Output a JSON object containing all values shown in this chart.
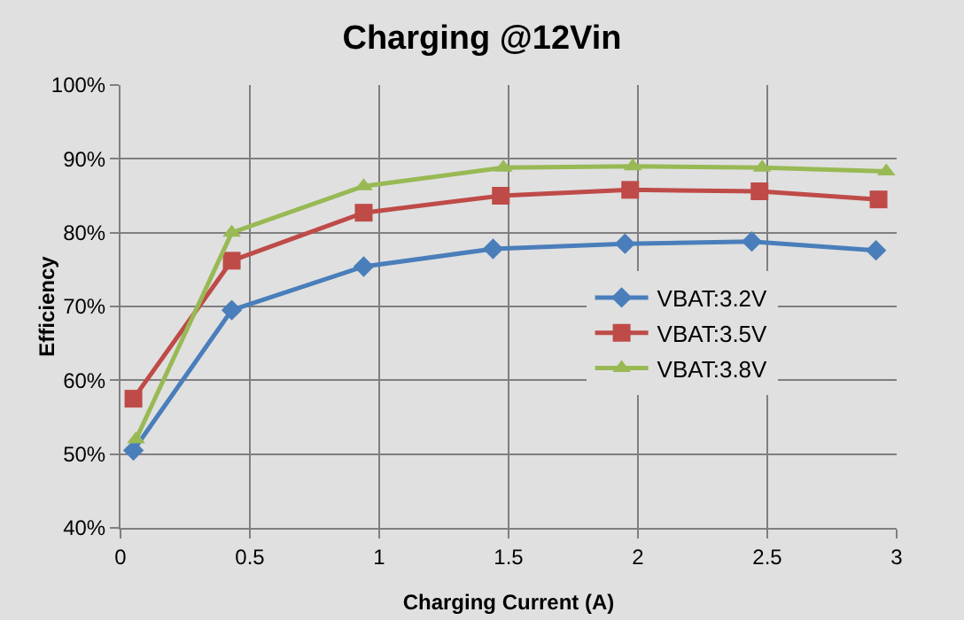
{
  "chart_data": {
    "type": "line",
    "title": "Charging @12Vin",
    "xlabel": "Charging Current (A)",
    "ylabel": "Efficiency",
    "xlim": [
      0,
      3
    ],
    "xticks": [
      0,
      0.5,
      1,
      1.5,
      2,
      2.5,
      3
    ],
    "ylim": [
      40,
      100
    ],
    "yticks": [
      {
        "value": 40,
        "label": "40%"
      },
      {
        "value": 50,
        "label": "50%"
      },
      {
        "value": 60,
        "label": "60%"
      },
      {
        "value": 70,
        "label": "70%"
      },
      {
        "value": 80,
        "label": "80%"
      },
      {
        "value": 90,
        "label": "90%"
      },
      {
        "value": 100,
        "label": "100%"
      }
    ],
    "grid": true,
    "legend": "right",
    "line_style": "solid",
    "series": [
      {
        "name": "VBAT:3.2V",
        "color": "#4a7ebb",
        "marker": "diamond",
        "x": [
          0.05,
          0.43,
          0.94,
          1.44,
          1.95,
          2.44,
          2.92
        ],
        "values": [
          50.5,
          69.5,
          75.4,
          77.8,
          78.5,
          78.8,
          77.6
        ]
      },
      {
        "name": "VBAT:3.5V",
        "color": "#be4b48",
        "marker": "square",
        "x": [
          0.05,
          0.43,
          0.94,
          1.47,
          1.97,
          2.47,
          2.93
        ],
        "values": [
          57.5,
          76.2,
          82.7,
          85.0,
          85.8,
          85.6,
          84.5
        ]
      },
      {
        "name": "VBAT:3.8V",
        "color": "#98b954",
        "marker": "triangle",
        "x": [
          0.06,
          0.43,
          0.94,
          1.48,
          1.98,
          2.48,
          2.96
        ],
        "values": [
          52,
          80,
          86.3,
          88.8,
          89.0,
          88.8,
          88.3
        ]
      }
    ]
  }
}
